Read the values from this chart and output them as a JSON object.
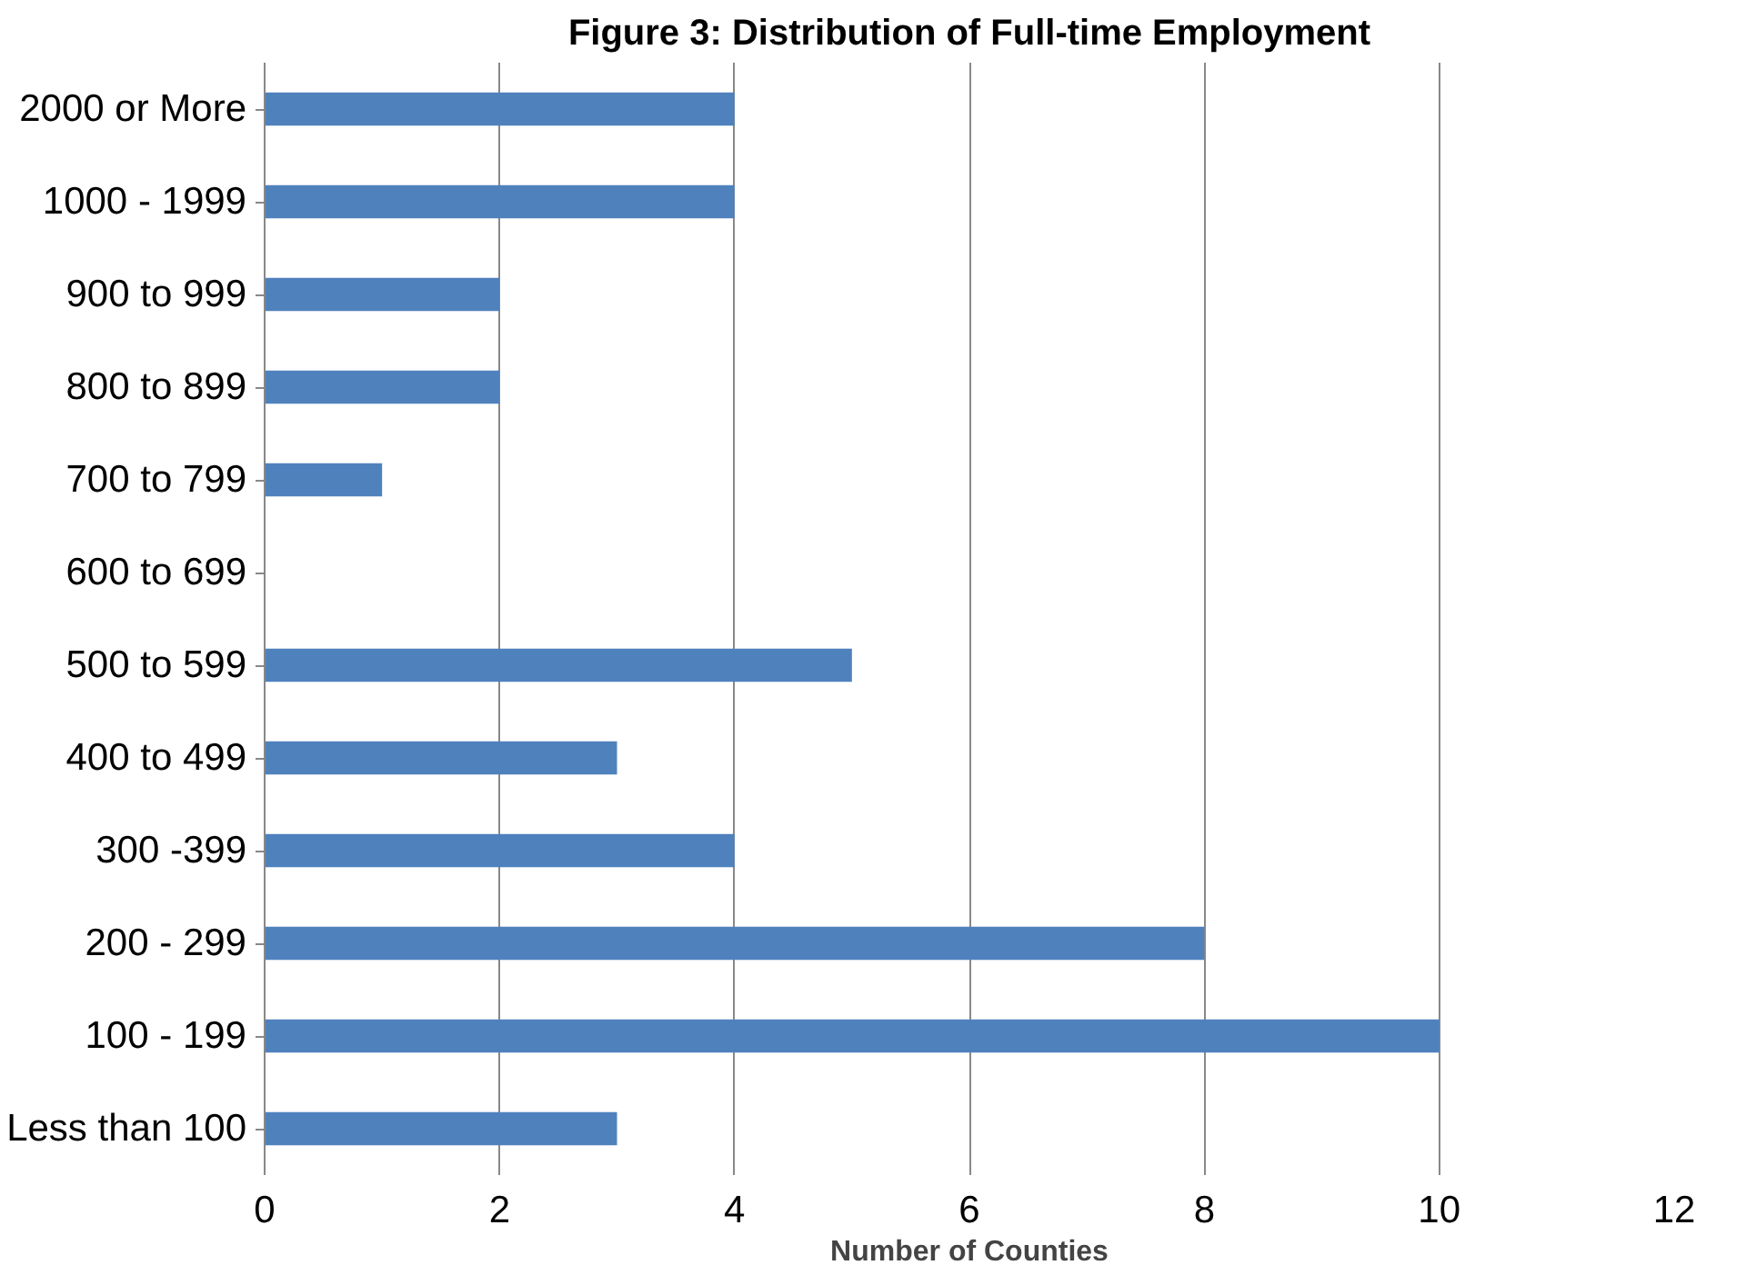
{
  "chart_data": {
    "type": "bar",
    "orientation": "horizontal",
    "title": "Figure 3: Distribution of Full-time Employment",
    "xlabel": "Number of Counties",
    "categories": [
      "2000 or More",
      "1000 - 1999",
      "900 to 999",
      "800 to 899",
      "700 to 799",
      "600 to 699",
      "500 to 599",
      "400 to 499",
      "300 -399",
      "200 - 299",
      "100 - 199",
      "Less than 100"
    ],
    "values": [
      4,
      4,
      2,
      2,
      1,
      0,
      5,
      3,
      4,
      8,
      10,
      3
    ],
    "color": "#4f81bd",
    "xlim": [
      0,
      12
    ],
    "xticks": [
      0,
      2,
      4,
      6,
      8,
      10,
      12
    ],
    "grid": "x"
  }
}
